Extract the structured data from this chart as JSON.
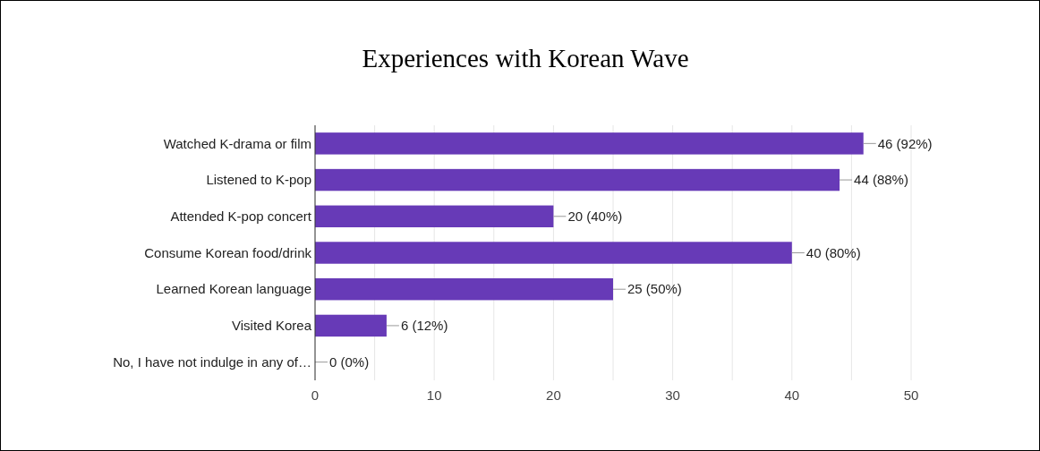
{
  "chart_data": {
    "type": "bar",
    "orientation": "horizontal",
    "title": "Experiences with Korean Wave",
    "categories": [
      "Watched K-drama or film",
      "Listened to K-pop",
      "Attended K-pop concert",
      "Consume Korean food/drink",
      "Learned Korean language",
      "Visited Korea",
      "No, I have not indulge in any of…"
    ],
    "values": [
      46,
      44,
      20,
      40,
      25,
      6,
      0
    ],
    "value_labels": [
      "46 (92%)",
      "44 (88%)",
      "20 (40%)",
      "40 (80%)",
      "25 (50%)",
      "6 (12%)",
      "0 (0%)"
    ],
    "color": "#673ab7",
    "xlim": [
      0,
      50
    ],
    "xticks": [
      0,
      {
        "value": 5,
        "label": null
      },
      10,
      {
        "value": 15,
        "label": null
      },
      20,
      {
        "value": 25,
        "label": null
      },
      30,
      {
        "value": 35,
        "label": null
      },
      40,
      {
        "value": 45,
        "label": null
      },
      50
    ],
    "grid": "x"
  }
}
